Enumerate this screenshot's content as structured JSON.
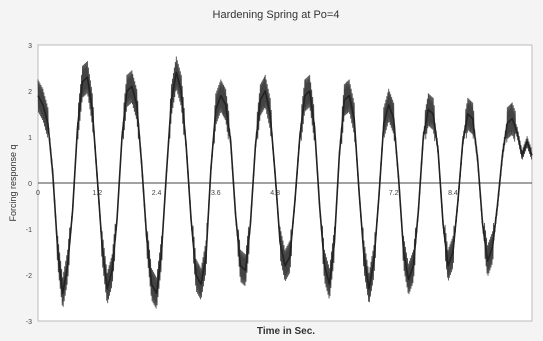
{
  "chart_data": {
    "type": "line",
    "title": "Hardening Spring at Po=4",
    "xlabel": "Time in Sec.",
    "ylabel": "Forcing response q",
    "xlim": [
      0,
      10
    ],
    "ylim": [
      -3,
      3
    ],
    "yticks": [
      3,
      2,
      1,
      0,
      -1,
      -2,
      -3
    ],
    "xtick_labels": [
      {
        "x": 0,
        "label": "0"
      },
      {
        "x": 1.2,
        "label": "1.2"
      },
      {
        "x": 2.4,
        "label": "2.4"
      },
      {
        "x": 3.6,
        "label": "3.6"
      },
      {
        "x": 4.8,
        "label": "4.8"
      },
      {
        "x": 7.2,
        "label": "7.2"
      },
      {
        "x": 8.4,
        "label": "8.4"
      }
    ],
    "grid": false,
    "series": [
      {
        "color": "#222222",
        "x": [
          0,
          0.1,
          0.2,
          0.3,
          0.4,
          0.5,
          0.6,
          0.7,
          0.8,
          0.9,
          1.0,
          1.1,
          1.2,
          1.3,
          1.4,
          1.5,
          1.6,
          1.7,
          1.8,
          1.9,
          2.0,
          2.1,
          2.2,
          2.3,
          2.4,
          2.5,
          2.6,
          2.7,
          2.8,
          2.9,
          3.0,
          3.1,
          3.2,
          3.3,
          3.4,
          3.5,
          3.6,
          3.7,
          3.8,
          3.9,
          4.0,
          4.1,
          4.2,
          4.3,
          4.4,
          4.5,
          4.6,
          4.7,
          4.8,
          4.9,
          5.0,
          5.1,
          5.2,
          5.3,
          5.4,
          5.5,
          5.6,
          5.7,
          5.8,
          5.9,
          6.0,
          6.1,
          6.2,
          6.3,
          6.4,
          6.5,
          6.6,
          6.7,
          6.8,
          6.9,
          7.0,
          7.1,
          7.2,
          7.3,
          7.4,
          7.5,
          7.6,
          7.7,
          7.8,
          7.9,
          8.0,
          8.1,
          8.2,
          8.3,
          8.4,
          8.5,
          8.6,
          8.7,
          8.8,
          8.9,
          9.0,
          9.1,
          9.2,
          9.3,
          9.4,
          9.5,
          9.6,
          9.7,
          9.8,
          9.9,
          10.0
        ],
        "y": [
          1.9,
          1.7,
          1.3,
          0.2,
          -1.5,
          -2.4,
          -1.8,
          -0.6,
          1.2,
          2.2,
          2.3,
          1.6,
          0.1,
          -1.4,
          -2.3,
          -1.9,
          -0.8,
          1.0,
          2.0,
          2.1,
          1.7,
          0.4,
          -1.2,
          -2.2,
          -2.4,
          -1.5,
          0.2,
          1.8,
          2.4,
          2.0,
          0.8,
          -0.8,
          -2.0,
          -2.2,
          -1.6,
          0.3,
          1.6,
          1.9,
          1.7,
          0.9,
          -0.7,
          -1.8,
          -1.9,
          -0.9,
          0.8,
          1.8,
          2.0,
          1.5,
          0.2,
          -1.3,
          -1.8,
          -1.6,
          -0.4,
          1.0,
          1.9,
          2.0,
          1.2,
          -0.5,
          -1.8,
          -2.2,
          -1.3,
          0.6,
          1.8,
          1.9,
          1.4,
          -0.2,
          -1.6,
          -2.3,
          -1.7,
          -0.3,
          1.3,
          1.7,
          1.4,
          0.1,
          -1.5,
          -2.1,
          -1.8,
          -0.6,
          1.0,
          1.6,
          1.5,
          0.7,
          -0.9,
          -1.8,
          -1.5,
          -0.4,
          0.9,
          1.5,
          1.4,
          0.5,
          -0.9,
          -1.7,
          -1.4,
          -0.5,
          0.6,
          1.3,
          1.4,
          1.1,
          0.6,
          0.9,
          0.6
        ]
      }
    ]
  }
}
